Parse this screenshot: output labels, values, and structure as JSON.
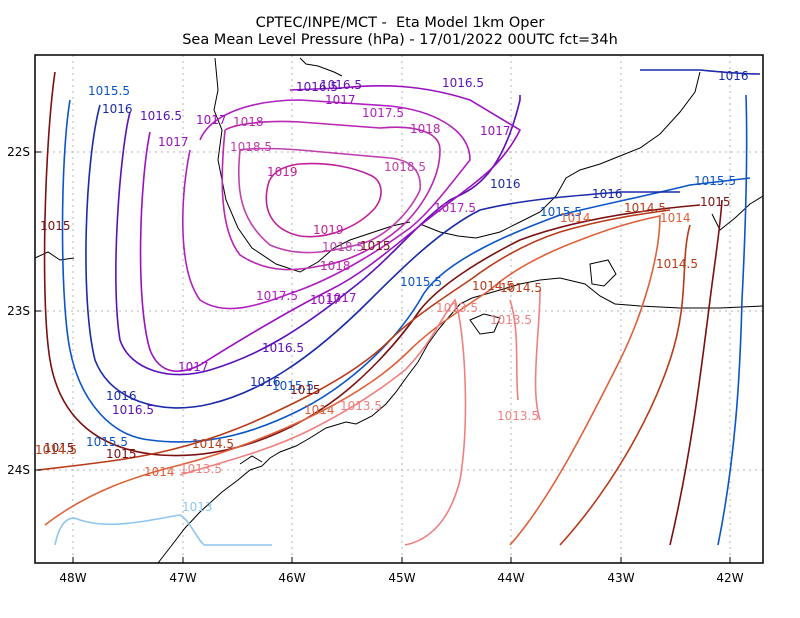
{
  "chart_data": {
    "type": "contour-map",
    "title": "CPTEC/INPE/MCT -  Eta Model 1km Oper",
    "subtitle": "Sea Mean Level Pressure (hPa) - 17/01/2022 00UTC fct=34h",
    "x_ticks": [
      "48W",
      "47W",
      "46W",
      "45W",
      "44W",
      "43W",
      "42W"
    ],
    "y_ticks": [
      "22S",
      "23S",
      "24S"
    ],
    "grid": "dotted",
    "colors": {
      "coast": "#000000",
      "grid": "#b4b4b4",
      "c1013": "#8fc6ef",
      "c1013_5": "#f08080",
      "c1014": "#e0603a",
      "c1014_5": "#b83a18",
      "c1015": "#7a1010",
      "c1015_5": "#0b55c8",
      "c1016": "#1a2aa8",
      "c1016_5": "#5a10b8",
      "c1017": "#9a10c0",
      "c1017_5": "#b020c0",
      "c1018": "#b828b0",
      "c1018_5": "#c040b0",
      "c1019": "#c0209a"
    },
    "contour_labels": [
      {
        "text": "1015.5",
        "color": "c1015_5"
      },
      {
        "text": "1016",
        "color": "c1016"
      },
      {
        "text": "1016.5",
        "color": "c1016_5"
      },
      {
        "text": "1016.5",
        "color": "c1016_5"
      },
      {
        "text": "1016.5",
        "color": "c1016_5"
      },
      {
        "text": "1017",
        "color": "c1017"
      },
      {
        "text": "1017",
        "color": "c1017"
      },
      {
        "text": "1017",
        "color": "c1017"
      },
      {
        "text": "1017",
        "color": "c1017"
      },
      {
        "text": "1017",
        "color": "c1017"
      },
      {
        "text": "1017",
        "color": "c1017"
      },
      {
        "text": "1017.5",
        "color": "c1017_5"
      },
      {
        "text": "1017.5",
        "color": "c1017_5"
      },
      {
        "text": "1017.5",
        "color": "c1017_5"
      },
      {
        "text": "1018",
        "color": "c1018"
      },
      {
        "text": "1018",
        "color": "c1018"
      },
      {
        "text": "1018",
        "color": "c1018"
      },
      {
        "text": "1018.5",
        "color": "c1018_5"
      },
      {
        "text": "1018.5",
        "color": "c1018_5"
      },
      {
        "text": "1018.5",
        "color": "c1018_5"
      },
      {
        "text": "1019",
        "color": "c1019"
      },
      {
        "text": "1019",
        "color": "c1019"
      },
      {
        "text": "1016.5",
        "color": "c1016_5"
      },
      {
        "text": "1016",
        "color": "c1016"
      },
      {
        "text": "1016",
        "color": "c1016"
      },
      {
        "text": "1016",
        "color": "c1016"
      },
      {
        "text": "1015.5",
        "color": "c1015_5"
      },
      {
        "text": "1015.5",
        "color": "c1015_5"
      },
      {
        "text": "1015.5",
        "color": "c1015_5"
      },
      {
        "text": "1015",
        "color": "c1015"
      },
      {
        "text": "1015",
        "color": "c1015"
      },
      {
        "text": "1015",
        "color": "c1015"
      },
      {
        "text": "1014.5",
        "color": "c1014_5"
      },
      {
        "text": "1014",
        "color": "c1014"
      },
      {
        "text": "1014.5",
        "color": "c1014_5"
      },
      {
        "text": "1014.5",
        "color": "c1014_5"
      },
      {
        "text": "1014",
        "color": "c1014"
      },
      {
        "text": "1013.5",
        "color": "c1013_5"
      },
      {
        "text": "1013.5",
        "color": "c1013_5"
      },
      {
        "text": "1013.5",
        "color": "c1013_5"
      },
      {
        "text": "1016.5",
        "color": "c1016_5"
      },
      {
        "text": "1017",
        "color": "c1017"
      },
      {
        "text": "1016",
        "color": "c1016"
      },
      {
        "text": "1015.5",
        "color": "c1015_5"
      },
      {
        "text": "1016.5",
        "color": "c1016_5"
      },
      {
        "text": "1016",
        "color": "c1016"
      },
      {
        "text": "1015",
        "color": "c1015"
      },
      {
        "text": "1014.5",
        "color": "c1014_5"
      },
      {
        "text": "1015.5",
        "color": "c1015_5"
      },
      {
        "text": "1015",
        "color": "c1015"
      },
      {
        "text": "1014",
        "color": "c1014"
      },
      {
        "text": "1014.5",
        "color": "c1014_5"
      },
      {
        "text": "1014",
        "color": "c1014"
      },
      {
        "text": "1013.5",
        "color": "c1013_5"
      },
      {
        "text": "1013.5",
        "color": "c1013_5"
      },
      {
        "text": "1013",
        "color": "c1013"
      },
      {
        "text": "1014.5",
        "color": "c1014_5"
      },
      {
        "text": "1015",
        "color": "c1015"
      }
    ]
  }
}
